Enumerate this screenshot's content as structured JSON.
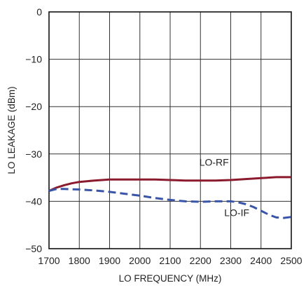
{
  "chart_data": {
    "type": "line",
    "xlabel": "LO FREQUENCY (MHz)",
    "ylabel": "LO LEAKAGE (dBm)",
    "xlim": [
      1700,
      2500
    ],
    "ylim": [
      -50,
      0
    ],
    "x_ticks": [
      1700,
      1800,
      1900,
      2000,
      2100,
      2200,
      2300,
      2400,
      2500
    ],
    "y_ticks": [
      0,
      -10,
      -20,
      -30,
      -40,
      -50
    ],
    "x_tick_labels": [
      "1700",
      "1800",
      "1900",
      "2000",
      "2100",
      "2200",
      "2300",
      "2400",
      "2500"
    ],
    "y_tick_labels": [
      "0",
      "−10",
      "−20",
      "−30",
      "−40",
      "−50"
    ],
    "grid": true,
    "series": [
      {
        "name": "LO-RF",
        "color": "#8b1a2e",
        "style": "solid",
        "x": [
          1700,
          1725,
          1750,
          1775,
          1800,
          1850,
          1900,
          1950,
          2000,
          2050,
          2100,
          2150,
          2200,
          2250,
          2300,
          2350,
          2400,
          2450,
          2500
        ],
        "y": [
          -37.8,
          -37.1,
          -36.6,
          -36.2,
          -35.9,
          -35.6,
          -35.4,
          -35.4,
          -35.4,
          -35.4,
          -35.5,
          -35.6,
          -35.6,
          -35.6,
          -35.5,
          -35.3,
          -35.1,
          -34.9,
          -34.9
        ]
      },
      {
        "name": "LO-IF",
        "color": "#3a55a8",
        "style": "dashed",
        "x": [
          1700,
          1725,
          1750,
          1800,
          1850,
          1900,
          1950,
          2000,
          2050,
          2100,
          2150,
          2200,
          2250,
          2300,
          2325,
          2350,
          2375,
          2400,
          2425,
          2450,
          2475,
          2500
        ],
        "y": [
          -37.8,
          -37.4,
          -37.4,
          -37.5,
          -37.7,
          -38.0,
          -38.4,
          -38.8,
          -39.3,
          -39.7,
          -40.0,
          -40.1,
          -40.0,
          -40.0,
          -40.2,
          -40.6,
          -41.2,
          -42.0,
          -42.8,
          -43.4,
          -43.5,
          -43.3
        ]
      }
    ],
    "annotations": [
      {
        "text": "LO-RF",
        "x": 2245,
        "y": -32.5
      },
      {
        "text": "LO-IF",
        "x": 2320,
        "y": -43.1
      }
    ]
  }
}
